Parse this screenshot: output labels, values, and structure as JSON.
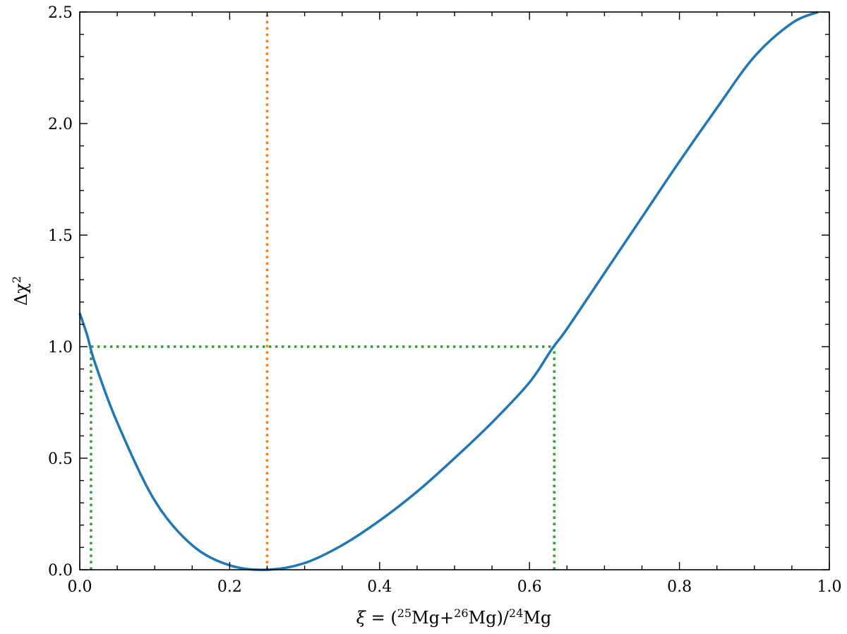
{
  "chart_data": {
    "type": "line",
    "title": "",
    "xlabel": {
      "symbol": "ξ",
      "equals": " = (",
      "sup1": "25",
      "t1": "Mg+",
      "sup2": "26",
      "t2": "Mg)/",
      "sup3": "24",
      "t3": "Mg"
    },
    "ylabel": {
      "base": "Δχ",
      "sup": "2"
    },
    "xlim": [
      0.0,
      1.0
    ],
    "ylim": [
      0.0,
      2.5
    ],
    "xticks": [
      0.0,
      0.2,
      0.4,
      0.6,
      0.8,
      1.0
    ],
    "xtick_labels": [
      "0.0",
      "0.2",
      "0.4",
      "0.6",
      "0.8",
      "1.0"
    ],
    "yticks": [
      0.0,
      0.5,
      1.0,
      1.5,
      2.0,
      2.5
    ],
    "ytick_labels": [
      "0.0",
      "0.5",
      "1.0",
      "1.5",
      "2.0",
      "2.5"
    ],
    "grid": false,
    "series": [
      {
        "color": "#1f77b4",
        "x": [
          0.0,
          0.01,
          0.02,
          0.05,
          0.1,
          0.15,
          0.2,
          0.25,
          0.3,
          0.35,
          0.4,
          0.45,
          0.5,
          0.55,
          0.6,
          0.63,
          0.65,
          0.7,
          0.75,
          0.8,
          0.85,
          0.9,
          0.95,
          0.985
        ],
        "y": [
          1.15,
          1.05,
          0.93,
          0.66,
          0.31,
          0.11,
          0.02,
          0.0,
          0.03,
          0.11,
          0.22,
          0.35,
          0.5,
          0.66,
          0.84,
          0.99,
          1.08,
          1.33,
          1.58,
          1.83,
          2.07,
          2.3,
          2.45,
          2.5
        ]
      }
    ],
    "reference_lines": [
      {
        "orientation": "vertical",
        "x": 0.25,
        "y_from": 0.0,
        "y_to": 2.5,
        "color": "#ff7f0e",
        "style": "dotted"
      },
      {
        "orientation": "horizontal",
        "y": 1.0,
        "x_from": 0.015,
        "x_to": 0.633,
        "color": "#2ca02c",
        "style": "dotted"
      },
      {
        "orientation": "vertical",
        "x": 0.015,
        "y_from": 0.0,
        "y_to": 1.0,
        "color": "#2ca02c",
        "style": "dotted"
      },
      {
        "orientation": "vertical",
        "x": 0.633,
        "y_from": 0.0,
        "y_to": 1.0,
        "color": "#2ca02c",
        "style": "dotted"
      }
    ]
  }
}
